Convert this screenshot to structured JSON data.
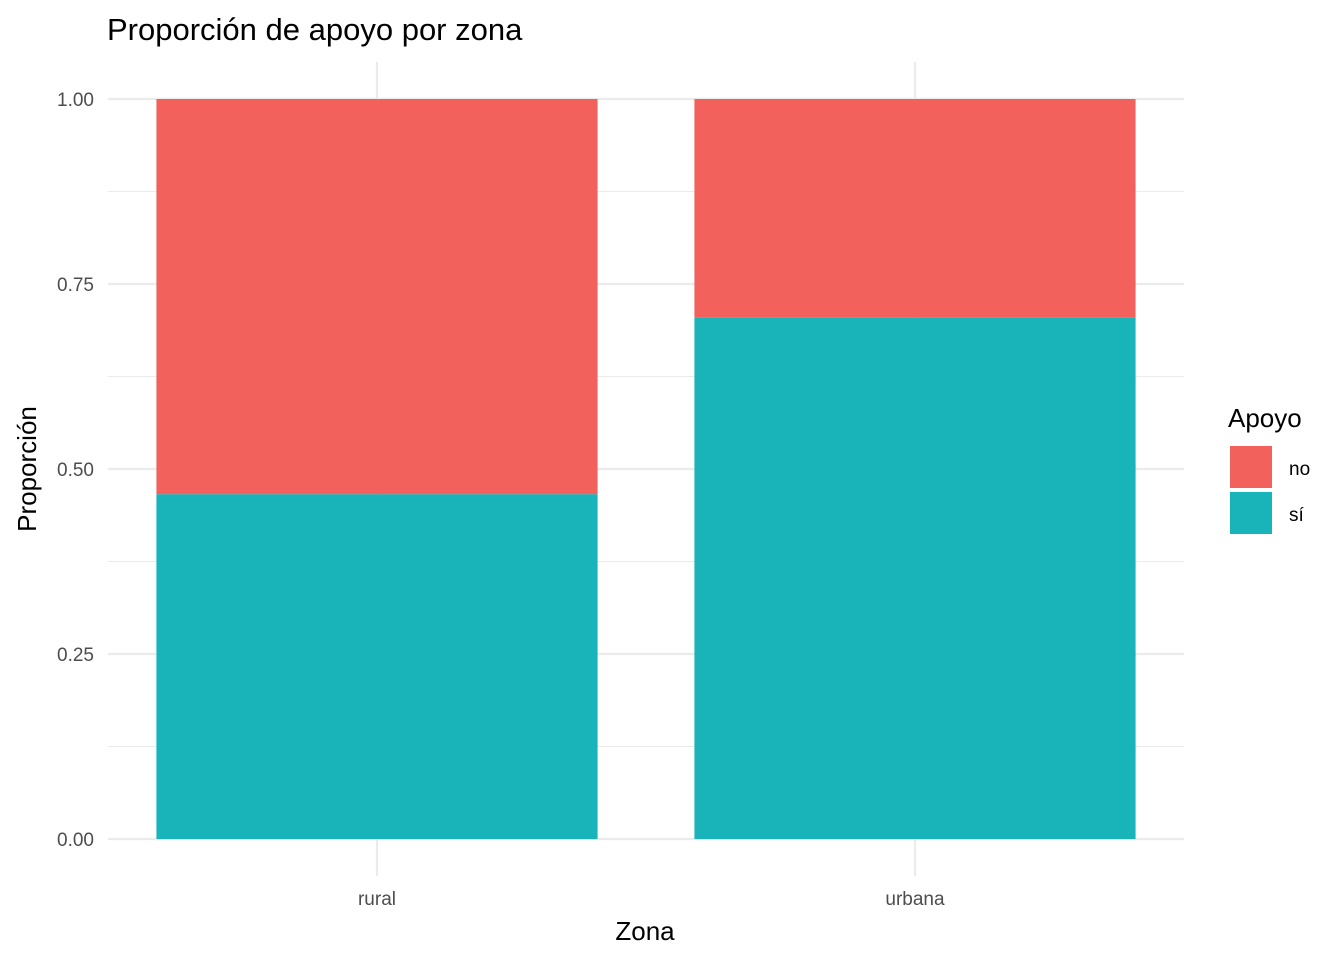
{
  "chart_data": {
    "type": "bar",
    "stacked": true,
    "title": "Proporción de apoyo por zona",
    "xlabel": "Zona",
    "ylabel": "Proporción",
    "categories": [
      "rural",
      "urbana"
    ],
    "series": [
      {
        "name": "sí",
        "values": [
          0.466,
          0.705
        ],
        "color": "#19B4B9"
      },
      {
        "name": "no",
        "values": [
          0.534,
          0.295
        ],
        "color": "#F2615C"
      }
    ],
    "ylim": [
      0,
      1
    ],
    "y_ticks": [
      "0.00",
      "0.25",
      "0.50",
      "0.75",
      "1.00"
    ],
    "grid": true,
    "legend": {
      "title": "Apoyo",
      "position": "right",
      "entries": [
        {
          "label": "no",
          "color": "#F2615C"
        },
        {
          "label": "sí",
          "color": "#19B4B9"
        }
      ]
    }
  }
}
